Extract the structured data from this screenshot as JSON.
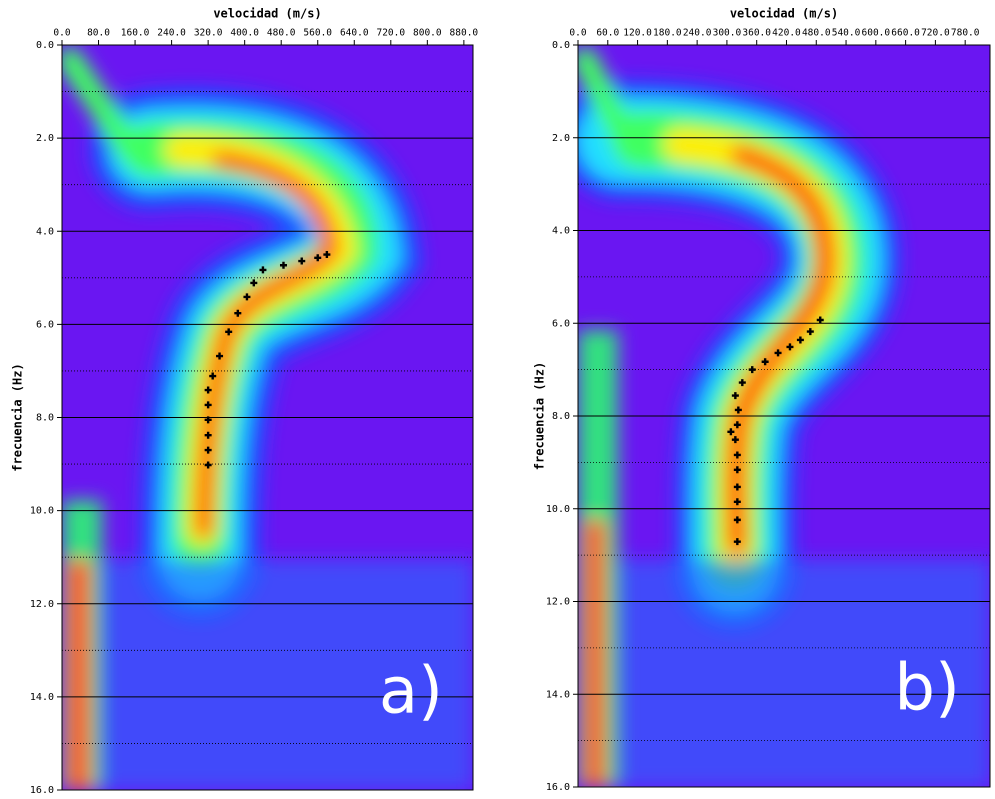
{
  "chart_data": [
    {
      "type": "scatter",
      "xlabel": "velocidad (m/s)",
      "ylabel": "frecuencia (Hz)",
      "label": "a)",
      "xlim": [
        0,
        900
      ],
      "xticks": [
        {
          "value": 0,
          "label": "0.0"
        },
        {
          "value": 80,
          "label": "80.0"
        },
        {
          "value": 160,
          "label": "160.0"
        },
        {
          "value": 240,
          "label": "240.0"
        },
        {
          "value": 320,
          "label": "320.0"
        },
        {
          "value": 400,
          "label": "400.0"
        },
        {
          "value": 480,
          "label": "480.0"
        },
        {
          "value": 560,
          "label": "560.0"
        },
        {
          "value": 640,
          "label": "640.0"
        },
        {
          "value": 720,
          "label": "720.0"
        },
        {
          "value": 800,
          "label": "800.0"
        },
        {
          "value": 880,
          "label": "880.0"
        }
      ],
      "ylim": [
        16,
        0
      ],
      "yticks": [
        {
          "value": 0,
          "label": "0.0"
        },
        {
          "value": 2,
          "label": "2.0"
        },
        {
          "value": 4,
          "label": "4.0"
        },
        {
          "value": 6,
          "label": "6.0"
        },
        {
          "value": 8,
          "label": "8.0"
        },
        {
          "value": 10,
          "label": "10.0"
        },
        {
          "value": 12,
          "label": "12.0"
        },
        {
          "value": 14,
          "label": "14.0"
        },
        {
          "value": 16,
          "label": "16.0"
        }
      ],
      "grid": true,
      "color": "#000000",
      "x": [
        580,
        560,
        525,
        485,
        440,
        420,
        405,
        385,
        365,
        345,
        330,
        320,
        320,
        320,
        320,
        320,
        320
      ],
      "values": [
        4.5,
        4.57,
        4.64,
        4.73,
        4.83,
        5.11,
        5.41,
        5.76,
        6.16,
        6.68,
        7.11,
        7.41,
        7.73,
        8.05,
        8.38,
        8.7,
        9.02
      ]
    },
    {
      "type": "scatter",
      "xlabel": "velocidad (m/s)",
      "ylabel": "frecuencia (Hz)",
      "label": "b)",
      "xlim": [
        0,
        830
      ],
      "xticks": [
        {
          "value": 0,
          "label": "0.0"
        },
        {
          "value": 60,
          "label": "60.0"
        },
        {
          "value": 120,
          "label": "120.0"
        },
        {
          "value": 180,
          "label": "180.0"
        },
        {
          "value": 240,
          "label": "240.0"
        },
        {
          "value": 300,
          "label": "300.0"
        },
        {
          "value": 360,
          "label": "360.0"
        },
        {
          "value": 420,
          "label": "420.0"
        },
        {
          "value": 480,
          "label": "480.0"
        },
        {
          "value": 540,
          "label": "540.0"
        },
        {
          "value": 600,
          "label": "600.0"
        },
        {
          "value": 660,
          "label": "660.0"
        },
        {
          "value": 720,
          "label": "720.0"
        },
        {
          "value": 780,
          "label": "780.0"
        }
      ],
      "ylim": [
        16,
        0
      ],
      "yticks": [
        {
          "value": 0,
          "label": "0.0"
        },
        {
          "value": 2,
          "label": "2.0"
        },
        {
          "value": 4,
          "label": "4.0"
        },
        {
          "value": 6,
          "label": "6.0"
        },
        {
          "value": 8,
          "label": "8.0"
        },
        {
          "value": 10,
          "label": "10.0"
        },
        {
          "value": 12,
          "label": "12.0"
        },
        {
          "value": 14,
          "label": "14.0"
        },
        {
          "value": 16,
          "label": "16.0"
        }
      ],
      "grid": true,
      "color": "#000000",
      "x": [
        488,
        468,
        448,
        427,
        403,
        377,
        351,
        331,
        317,
        323,
        321,
        308,
        317,
        321,
        321,
        321,
        321,
        321,
        321
      ],
      "values": [
        5.93,
        6.18,
        6.36,
        6.51,
        6.64,
        6.83,
        7.0,
        7.28,
        7.56,
        7.87,
        8.19,
        8.34,
        8.51,
        8.84,
        9.16,
        9.53,
        9.85,
        10.24,
        10.71
      ]
    }
  ]
}
